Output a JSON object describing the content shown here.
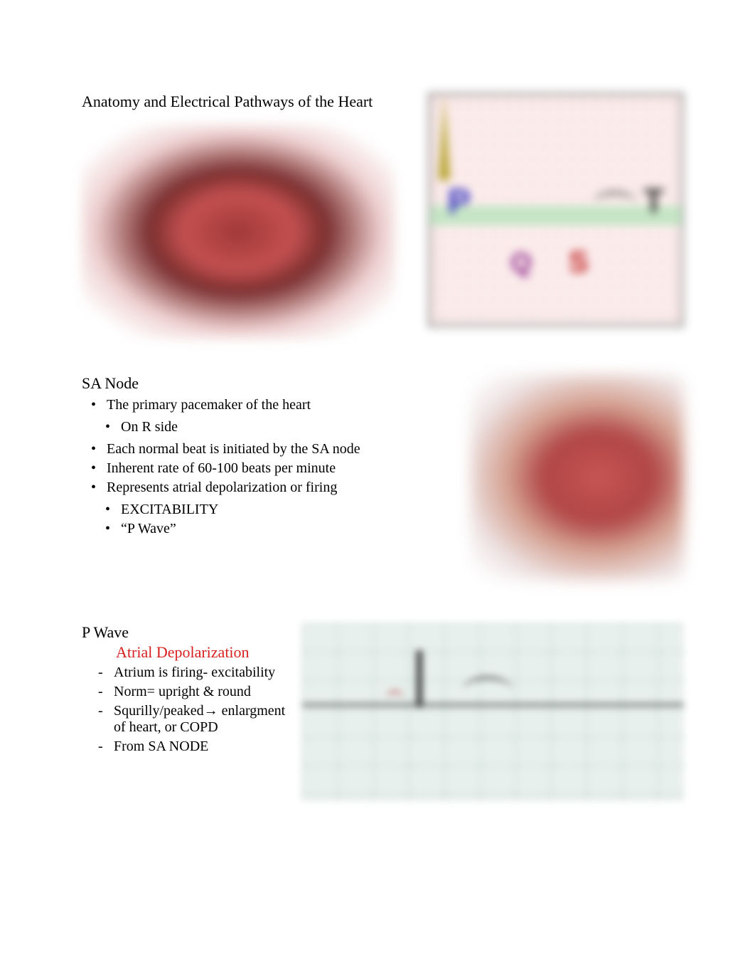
{
  "title": "Anatomy and Electrical Pathways of the Heart",
  "ecg": {
    "p": "P",
    "t": "T",
    "q": "Q",
    "s": "S"
  },
  "sa_node": {
    "heading": "SA Node",
    "bullets": {
      "b1": "The primary pacemaker of the heart",
      "b1a": "On R side",
      "b2": "Each normal beat   is initiated by the SA node",
      "b3": "Inherent rate of 60-100 beats per minute",
      "b4": "Represents atrial depolarization or firing",
      "b4a": "EXCITABILITY",
      "b4b": "“P Wave”"
    }
  },
  "p_wave": {
    "heading": "P Wave",
    "subheading": "Atrial Depolarization",
    "items": {
      "i1": "Atrium is firing- excitability",
      "i2": "Norm= upright & round",
      "i3": "Squrilly/peaked→ enlargment of heart, or COPD",
      "i4": "From SA NODE"
    }
  },
  "colors": {
    "red": "#d82020",
    "text": "#000000",
    "ecg_p": "#3030c0",
    "ecg_q": "#8a2088",
    "ecg_s": "#c02020",
    "ecg_r": "#b8a430"
  }
}
